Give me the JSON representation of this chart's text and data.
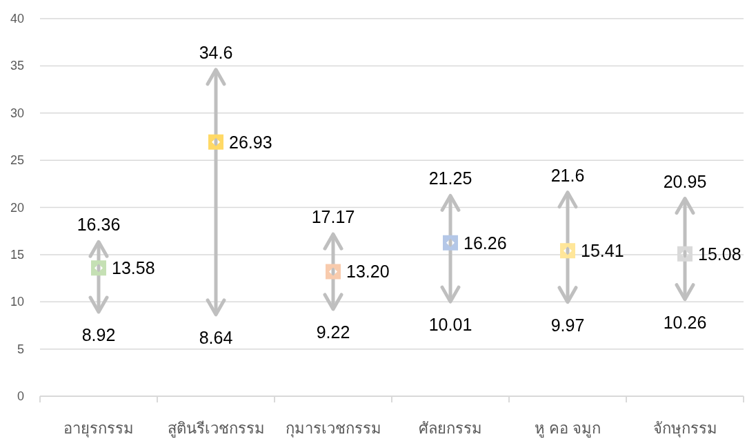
{
  "chart_data": {
    "type": "scatter",
    "categories": [
      "อายุรกรรม",
      "สูตินรีเวชกรรม",
      "กุมารเวชกรรม",
      "ศัลยกรรม",
      "หู คอ จมูก",
      "จักษุกรรม"
    ],
    "values": [
      13.58,
      26.93,
      13.2,
      16.26,
      15.41,
      15.08
    ],
    "colors": [
      "#c5e0b4",
      "#ffd966",
      "#f8cbad",
      "#b4c7e7",
      "#ffe699",
      "#d9d9d9"
    ],
    "errors": [
      [
        8.92,
        16.36
      ],
      [
        8.64,
        34.6
      ],
      [
        9.22,
        17.17
      ],
      [
        10.01,
        21.25
      ],
      [
        9.97,
        21.6
      ],
      [
        10.26,
        20.95
      ]
    ],
    "value_labels": [
      "13.58",
      "26.93",
      "13.20",
      "16.26",
      "15.41",
      "15.08"
    ],
    "annotations": [
      {
        "text": "16.36",
        "x": "อายุรกรรม",
        "y": 16.36
      },
      {
        "text": "8.92",
        "x": "อายุรกรรม",
        "y": 8.92
      },
      {
        "text": "34.6",
        "x": "สูตินรีเวชกรรม",
        "y": 34.6
      },
      {
        "text": "8.64",
        "x": "สูตินรีเวชกรรม",
        "y": 8.64
      },
      {
        "text": "17.17",
        "x": "กุมารเวชกรรม",
        "y": 17.17
      },
      {
        "text": "9.22",
        "x": "กุมารเวชกรรม",
        "y": 9.22
      },
      {
        "text": "21.25",
        "x": "ศัลยกรรม",
        "y": 21.25
      },
      {
        "text": "10.01",
        "x": "ศัลยกรรม",
        "y": 10.01
      },
      {
        "text": "21.6",
        "x": "หู คอ จมูก",
        "y": 21.6
      },
      {
        "text": "9.97",
        "x": "หู คอ จมูก",
        "y": 9.97
      },
      {
        "text": "20.95",
        "x": "จักษุกรรม",
        "y": 20.95
      },
      {
        "text": "10.26",
        "x": "จักษุกรรม",
        "y": 10.26
      }
    ],
    "ylim": [
      0,
      40
    ],
    "yticks": [
      0,
      5,
      10,
      15,
      20,
      25,
      30,
      35,
      40
    ],
    "grid": "y",
    "marker": "square"
  }
}
